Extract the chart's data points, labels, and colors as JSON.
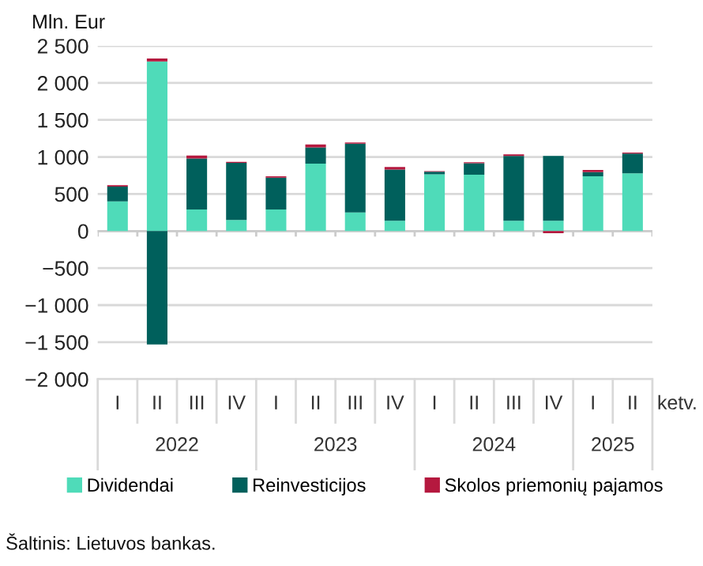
{
  "chart_data": {
    "type": "bar",
    "stacked": true,
    "ylabel": "Mln. Eur",
    "categories": [
      "I",
      "II",
      "III",
      "IV",
      "I",
      "II",
      "III",
      "IV",
      "I",
      "II",
      "III",
      "IV",
      "I",
      "II"
    ],
    "series": [
      {
        "name": "Dividendai",
        "color": "#4fdbb9",
        "values": [
          400,
          2290,
          290,
          150,
          290,
          910,
          250,
          140,
          765,
          760,
          140,
          140,
          740,
          780
        ]
      },
      {
        "name": "Reinvesticijos",
        "color": "#00605c",
        "values": [
          200,
          -1530,
          690,
          770,
          430,
          220,
          930,
          690,
          35,
          155,
          875,
          875,
          55,
          265
        ]
      },
      {
        "name": "Skolos priemonių pajamos",
        "color": "#b5193f",
        "values": [
          20,
          40,
          40,
          15,
          20,
          40,
          15,
          35,
          10,
          15,
          20,
          -30,
          30,
          15
        ]
      }
    ],
    "ylim": [
      -2000,
      2500
    ],
    "yticks": [
      {
        "value": -2000,
        "label": "−2 000"
      },
      {
        "value": -1500,
        "label": "−1 500"
      },
      {
        "value": -1000,
        "label": "−1 000"
      },
      {
        "value": -500,
        "label": "−500"
      },
      0,
      500,
      {
        "value": 1000,
        "label": "1 000"
      },
      {
        "value": 1500,
        "label": "1 500"
      },
      {
        "value": 2000,
        "label": "2 000"
      },
      {
        "value": 2500,
        "label": "2 500"
      }
    ],
    "grid": "y",
    "legend": "bottom",
    "annotations": [
      "ketv.",
      "Šaltinis: Lietuvos bankas.",
      "2022",
      "2023",
      "2024",
      "2025"
    ]
  }
}
